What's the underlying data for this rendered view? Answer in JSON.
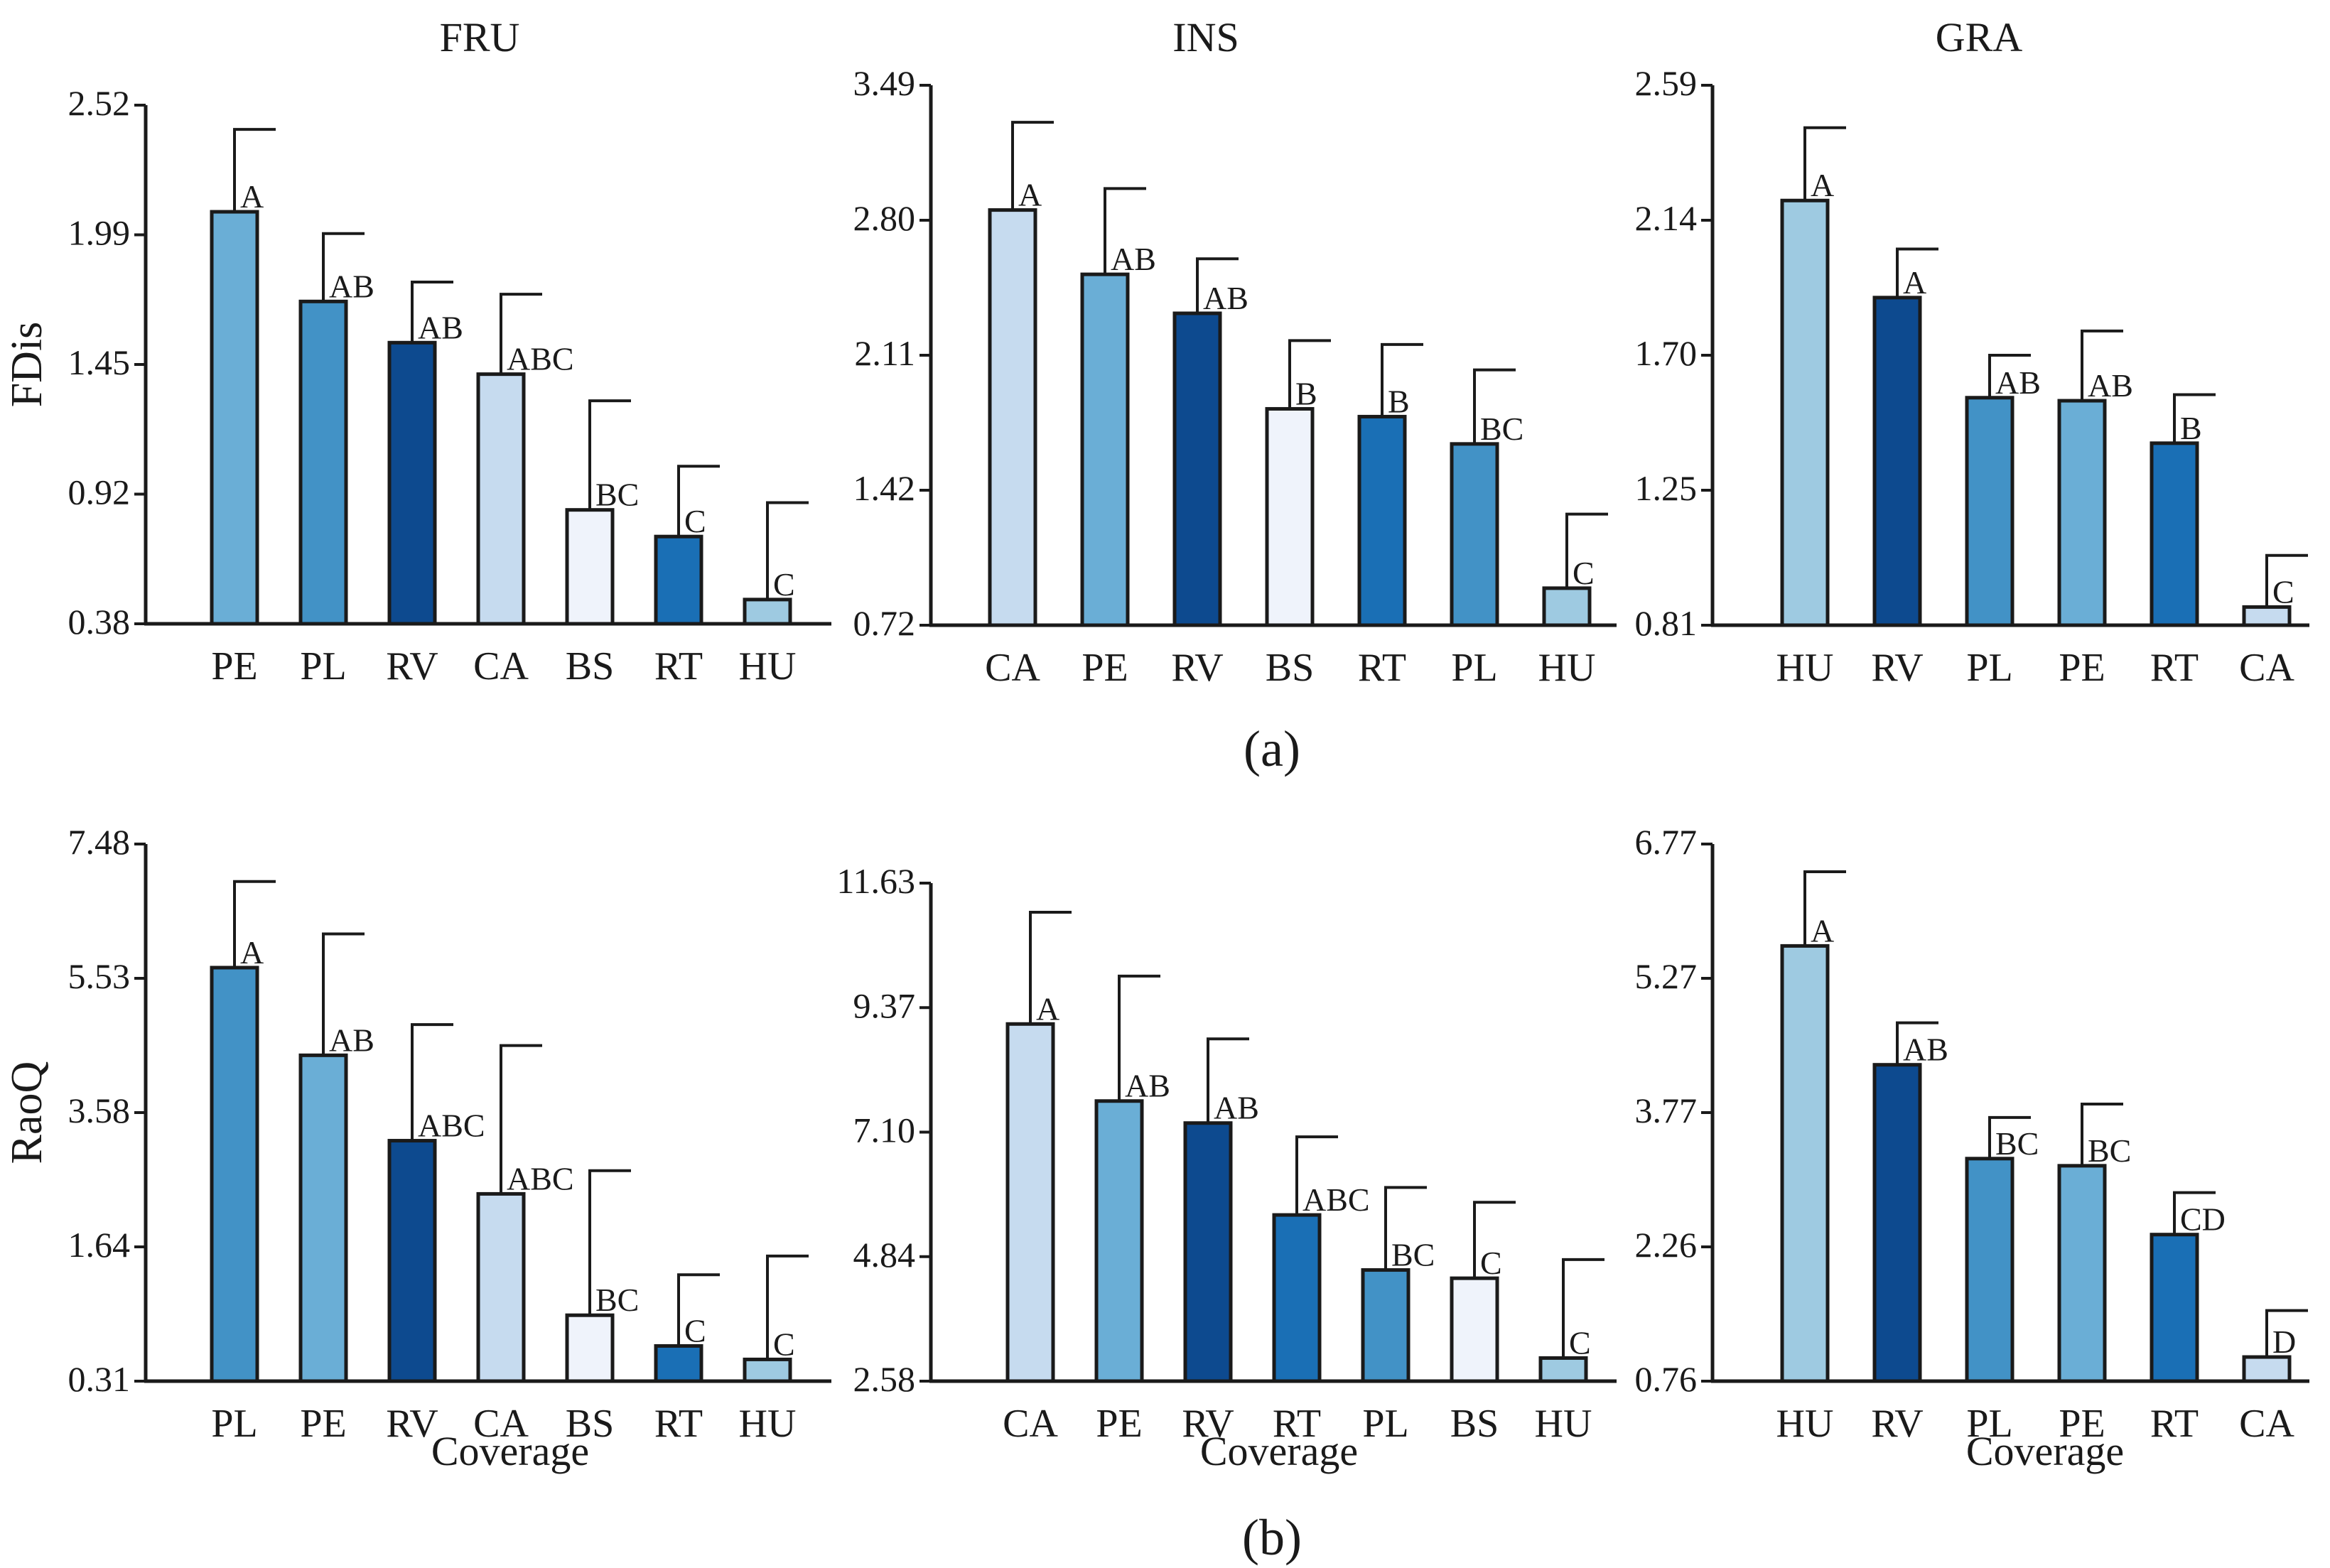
{
  "figure": {
    "row_labels": [
      "(a)",
      "(b)"
    ],
    "colors": {
      "PE": "#6aaed6",
      "PL": "#4292c6",
      "RV": "#0d4a8f",
      "CA": "#c6dbef",
      "BS": "#eff3fb",
      "RT": "#1a6fb5",
      "HU": "#9ecae1",
      "axis": "#1a1a1a"
    }
  },
  "chart_data": [
    {
      "type": "bar",
      "panel": "FRU-FDis",
      "title": "FRU",
      "ylabel": "FDis",
      "xlabel": "",
      "ylim": [
        0.38,
        2.52
      ],
      "yticks": [
        "2.52",
        "1.99",
        "1.45",
        "0.92",
        "0.38"
      ],
      "categories": [
        "PE",
        "PL",
        "RV",
        "CA",
        "BS",
        "RT",
        "HU"
      ],
      "values": [
        2.08,
        1.71,
        1.54,
        1.41,
        0.85,
        0.74,
        0.48
      ],
      "error_upper": [
        2.42,
        1.99,
        1.79,
        1.74,
        1.3,
        1.03,
        0.88
      ],
      "letters": [
        "A",
        "AB",
        "AB",
        "ABC",
        "BC",
        "C",
        "C"
      ]
    },
    {
      "type": "bar",
      "panel": "INS-FDis",
      "title": "INS",
      "ylabel": "",
      "xlabel": "",
      "ylim": [
        0.72,
        3.49
      ],
      "yticks": [
        "3.49",
        "2.80",
        "2.11",
        "1.42",
        "0.72"
      ],
      "categories": [
        "CA",
        "PE",
        "RV",
        "BS",
        "RT",
        "PL",
        "HU"
      ],
      "values": [
        2.85,
        2.52,
        2.32,
        1.83,
        1.79,
        1.65,
        0.91
      ],
      "error_upper": [
        3.3,
        2.96,
        2.6,
        2.18,
        2.16,
        2.03,
        1.29
      ],
      "letters": [
        "A",
        "AB",
        "AB",
        "B",
        "B",
        "BC",
        "C"
      ]
    },
    {
      "type": "bar",
      "panel": "GRA-FDis",
      "title": "GRA",
      "ylabel": "",
      "xlabel": "",
      "ylim": [
        0.81,
        2.59
      ],
      "yticks": [
        "2.59",
        "2.14",
        "1.70",
        "1.25",
        "0.81"
      ],
      "categories": [
        "HU",
        "RV",
        "PL",
        "PE",
        "RT",
        "CA"
      ],
      "values": [
        2.21,
        1.89,
        1.56,
        1.55,
        1.41,
        0.87
      ],
      "error_upper": [
        2.45,
        2.05,
        1.7,
        1.78,
        1.57,
        1.04
      ],
      "letters": [
        "A",
        "A",
        "AB",
        "AB",
        "B",
        "C"
      ]
    },
    {
      "type": "bar",
      "panel": "FRU-RaoQ",
      "title": "",
      "ylabel": "RaoQ",
      "xlabel": "Coverage",
      "ylim": [
        0.31,
        7.48
      ],
      "yticks": [
        "7.48",
        "5.53",
        "3.58",
        "1.64",
        "0.31"
      ],
      "categories": [
        "PL",
        "PE",
        "RV",
        "CA",
        "BS",
        "RT",
        "HU"
      ],
      "values": [
        5.83,
        4.66,
        3.52,
        2.81,
        1.19,
        0.78,
        0.6
      ],
      "error_upper": [
        6.98,
        6.28,
        5.07,
        4.79,
        3.12,
        1.73,
        1.98
      ],
      "letters": [
        "A",
        "AB",
        "ABC",
        "ABC",
        "BC",
        "C",
        "C"
      ]
    },
    {
      "type": "bar",
      "panel": "INS-RaoQ",
      "title": "",
      "ylabel": "",
      "xlabel": "Coverage",
      "ylim": [
        2.58,
        11.63
      ],
      "yticks": [
        "11.63",
        "9.37",
        "7.10",
        "4.84",
        "2.58"
      ],
      "categories": [
        "CA",
        "PE",
        "RV",
        "RT",
        "PL",
        "BS",
        "HU"
      ],
      "values": [
        9.07,
        7.67,
        7.27,
        5.6,
        4.6,
        4.45,
        3.0
      ],
      "error_upper": [
        11.1,
        9.94,
        8.8,
        7.02,
        6.1,
        5.83,
        4.79
      ],
      "letters": [
        "A",
        "AB",
        "AB",
        "ABC",
        "BC",
        "C",
        "C"
      ]
    },
    {
      "type": "bar",
      "panel": "GRA-RaoQ",
      "title": "",
      "ylabel": "",
      "xlabel": "Coverage",
      "ylim": [
        0.76,
        6.77
      ],
      "yticks": [
        "6.77",
        "5.27",
        "3.77",
        "2.26",
        "0.76"
      ],
      "categories": [
        "HU",
        "RV",
        "PL",
        "PE",
        "RT",
        "CA"
      ],
      "values": [
        5.63,
        4.3,
        3.25,
        3.17,
        2.4,
        1.03
      ],
      "error_upper": [
        6.46,
        4.77,
        3.71,
        3.86,
        2.87,
        1.55
      ],
      "letters": [
        "A",
        "AB",
        "BC",
        "BC",
        "CD",
        "D"
      ]
    }
  ]
}
